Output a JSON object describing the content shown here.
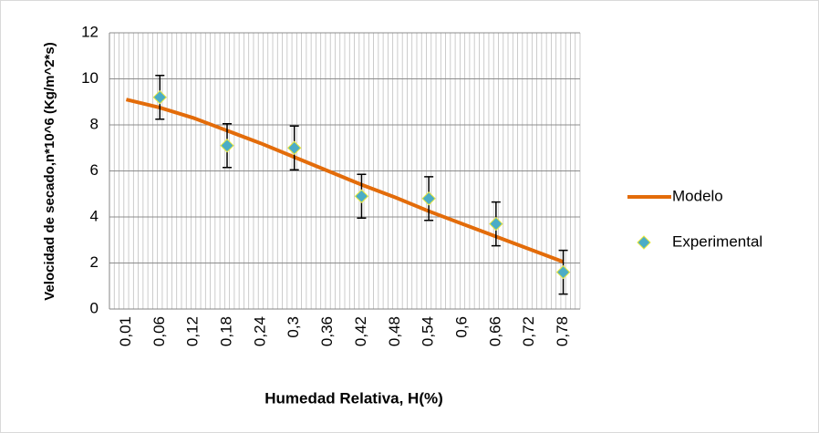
{
  "chart_data": {
    "type": "line",
    "x_label": "Humedad Relativa, H(%)",
    "y_label": "Velocidad de secado,n*10^6 (Kg/m^2*s)",
    "categories": [
      "0,01",
      "0,06",
      "0,12",
      "0,18",
      "0,24",
      "0,3",
      "0,36",
      "0,42",
      "0,48",
      "0,54",
      "0,6",
      "0,66",
      "0,72",
      "0,78"
    ],
    "series": [
      {
        "name": "Modelo",
        "color": "#e36c0a",
        "values": [
          9.1,
          8.75,
          8.3,
          7.75,
          7.2,
          6.6,
          6.0,
          5.4,
          4.85,
          4.25,
          3.7,
          3.15,
          2.6,
          2.05
        ]
      },
      {
        "name": "Experimental",
        "color": "#4bacc6",
        "marker": "diamond",
        "values": [
          null,
          9.2,
          null,
          7.1,
          null,
          7.0,
          null,
          4.9,
          null,
          4.8,
          null,
          3.7,
          null,
          1.6
        ],
        "errors": [
          null,
          0.95,
          null,
          0.95,
          null,
          0.95,
          null,
          0.95,
          null,
          0.95,
          null,
          0.95,
          null,
          0.95
        ]
      }
    ],
    "ylim": [
      0,
      12
    ],
    "yticks": [
      0,
      2,
      4,
      6,
      8,
      10,
      12
    ],
    "grid": true,
    "legend": "right"
  }
}
